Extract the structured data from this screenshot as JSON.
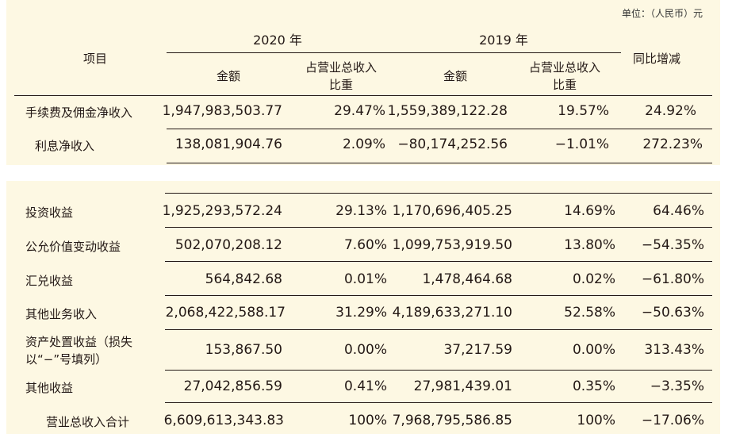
{
  "unit_note": "单位：（人民币）元",
  "header": {
    "item": "项目",
    "year_2020": "2020 年",
    "year_2019": "2019 年",
    "amount": "金额",
    "ratio_line1": "占营业总收入",
    "ratio_line2": "比重",
    "yoy": "同比增减"
  },
  "rows": [
    {
      "label": "手续费及佣金净收入",
      "a2020": "1,947,983,503.77",
      "r2020": "29.47%",
      "a2019": "1,559,389,122.28",
      "r2019": "19.57%",
      "yoy": "24.92%"
    },
    {
      "label": "利息净收入",
      "a2020": "138,081,904.76",
      "r2020": "2.09%",
      "a2019": "−80,174,252.56",
      "r2019": "−1.01%",
      "yoy": "272.23%"
    },
    {
      "label": "投资收益",
      "a2020": "1,925,293,572.24",
      "r2020": "29.13%",
      "a2019": "1,170,696,405.25",
      "r2019": "14.69%",
      "yoy": "64.46%"
    },
    {
      "label": "公允价值变动收益",
      "a2020": "502,070,208.12",
      "r2020": "7.60%",
      "a2019": "1,099,753,919.50",
      "r2019": "13.80%",
      "yoy": "−54.35%"
    },
    {
      "label": "汇兑收益",
      "a2020": "564,842.68",
      "r2020": "0.01%",
      "a2019": "1,478,464.68",
      "r2019": "0.02%",
      "yoy": "−61.80%"
    },
    {
      "label": "其他业务收入",
      "a2020": "2,068,422,588.17",
      "r2020": "31.29%",
      "a2019": "4,189,633,271.10",
      "r2019": "52.58%",
      "yoy": "−50.63%"
    },
    {
      "label": "资产处置收益（损失",
      "label2": "以“−”号填列）",
      "a2020": "153,867.50",
      "r2020": "0.00%",
      "a2019": "37,217.59",
      "r2019": "0.00%",
      "yoy": "313.43%"
    },
    {
      "label": "其他收益",
      "a2020": "27,042,856.59",
      "r2020": "0.41%",
      "a2019": "27,981,439.01",
      "r2019": "0.35%",
      "yoy": "−3.35%"
    },
    {
      "label": "营业总收入合计",
      "a2020": "6,609,613,343.83",
      "r2020": "100%",
      "a2019": "7,968,795,586.85",
      "r2019": "100%",
      "yoy": "−17.06%"
    }
  ]
}
